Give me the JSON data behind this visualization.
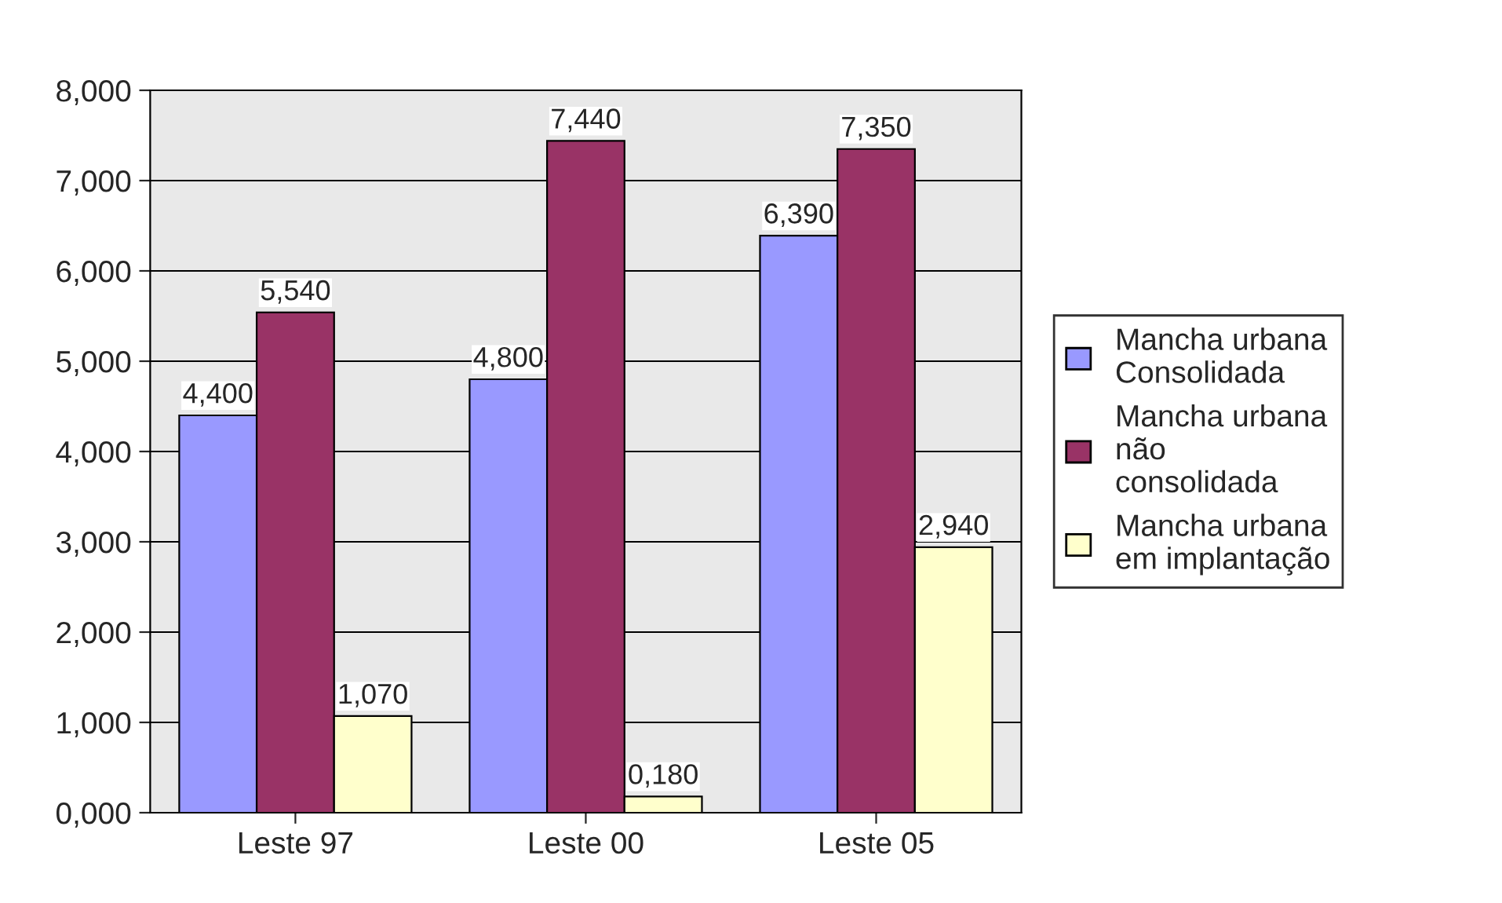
{
  "chart_data": {
    "type": "bar",
    "categories": [
      "Leste 97",
      "Leste 00",
      "Leste 05"
    ],
    "series": [
      {
        "name": "Mancha urbana Consolidada",
        "color": "#9999ff",
        "values": [
          4.4,
          4.8,
          6.39
        ],
        "value_labels": [
          "4,400",
          "4,800",
          "6,390"
        ]
      },
      {
        "name": "Mancha urbana não consolidada",
        "color": "#993366",
        "values": [
          5.54,
          7.44,
          7.35
        ],
        "value_labels": [
          "5,540",
          "7,440",
          "7,350"
        ]
      },
      {
        "name": "Mancha urbana em implantação",
        "color": "#ffffcc",
        "values": [
          1.07,
          0.18,
          2.94
        ],
        "value_labels": [
          "1,070",
          "0,180",
          "2,940"
        ]
      }
    ],
    "ylim": [
      0,
      8
    ],
    "yticks": [
      {
        "value": 0,
        "label": "0,000"
      },
      {
        "value": 1,
        "label": "1,000"
      },
      {
        "value": 2,
        "label": "2,000"
      },
      {
        "value": 3,
        "label": "3,000"
      },
      {
        "value": 4,
        "label": "4,000"
      },
      {
        "value": 5,
        "label": "5,000"
      },
      {
        "value": 6,
        "label": "6,000"
      },
      {
        "value": 7,
        "label": "7,000"
      },
      {
        "value": 8,
        "label": "8,000"
      }
    ],
    "grid": "y",
    "legend": "right"
  }
}
